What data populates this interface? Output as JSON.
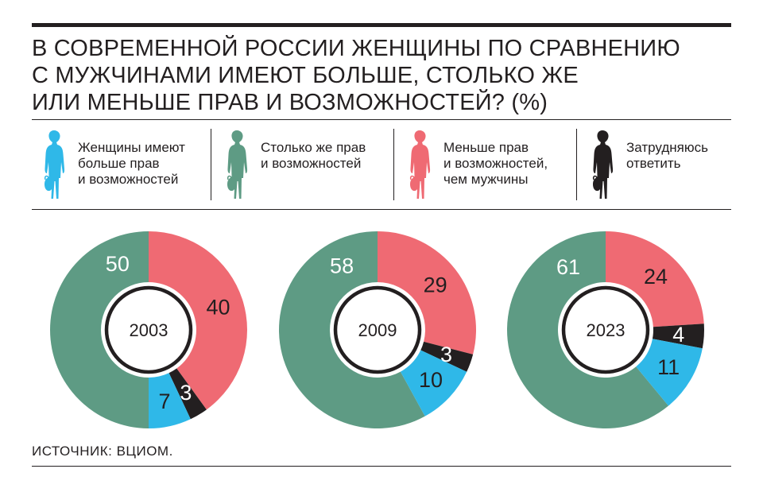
{
  "title": {
    "lines": [
      "В СОВРЕМЕННОЙ РОССИИ ЖЕНЩИНЫ ПО СРАВНЕНИЮ",
      "С МУЖЧИНАМИ ИМЕЮТ БОЛЬШЕ, СТОЛЬКО ЖЕ",
      "ИЛИ МЕНЬШЕ ПРАВ И ВОЗМОЖНОСТЕЙ? (%)"
    ]
  },
  "legend": [
    {
      "lines": [
        "Женщины имеют",
        "больше прав",
        "и возможностей"
      ],
      "color": "#2fb8e8",
      "icon": "woman-silhouette-icon"
    },
    {
      "lines": [
        "Столько же прав",
        "и возможностей"
      ],
      "color": "#5e9b84",
      "icon": "woman-silhouette-icon"
    },
    {
      "lines": [
        "Меньше прав",
        "и возможностей,",
        "чем мужчины"
      ],
      "color": "#ef6a73",
      "icon": "woman-silhouette-icon"
    },
    {
      "lines": [
        "Затрудняюсь",
        "ответить"
      ],
      "color": "#231f20",
      "icon": "woman-silhouette-icon"
    }
  ],
  "chart_data": [
    {
      "type": "pie",
      "center_label": "2003",
      "series": [
        {
          "name": "Женщины имеют больше прав и возможностей",
          "value": 7
        },
        {
          "name": "Столько же прав и возможностей",
          "value": 50
        },
        {
          "name": "Меньше прав и возможностей, чем мужчины",
          "value": 40
        },
        {
          "name": "Затрудняюсь ответить",
          "value": 3
        }
      ]
    },
    {
      "type": "pie",
      "center_label": "2009",
      "series": [
        {
          "name": "Женщины имеют больше прав и возможностей",
          "value": 10
        },
        {
          "name": "Столько же прав и возможностей",
          "value": 58
        },
        {
          "name": "Меньше прав и возможностей, чем мужчины",
          "value": 29
        },
        {
          "name": "Затрудняюсь ответить",
          "value": 3
        }
      ]
    },
    {
      "type": "pie",
      "center_label": "2023",
      "series": [
        {
          "name": "Женщины имеют больше прав и возможностей",
          "value": 11
        },
        {
          "name": "Столько же прав и возможностей",
          "value": 61
        },
        {
          "name": "Меньше прав и возможностей, чем мужчины",
          "value": 24
        },
        {
          "name": "Затрудняюсь ответить",
          "value": 4
        }
      ]
    }
  ],
  "colors": {
    "more": "#2fb8e8",
    "same": "#5e9b84",
    "less": "#ef6a73",
    "unsure": "#231f20",
    "text": "#231f20",
    "label_light": "#ffffff"
  },
  "source": "ИСТОЧНИК: ВЦИОМ."
}
